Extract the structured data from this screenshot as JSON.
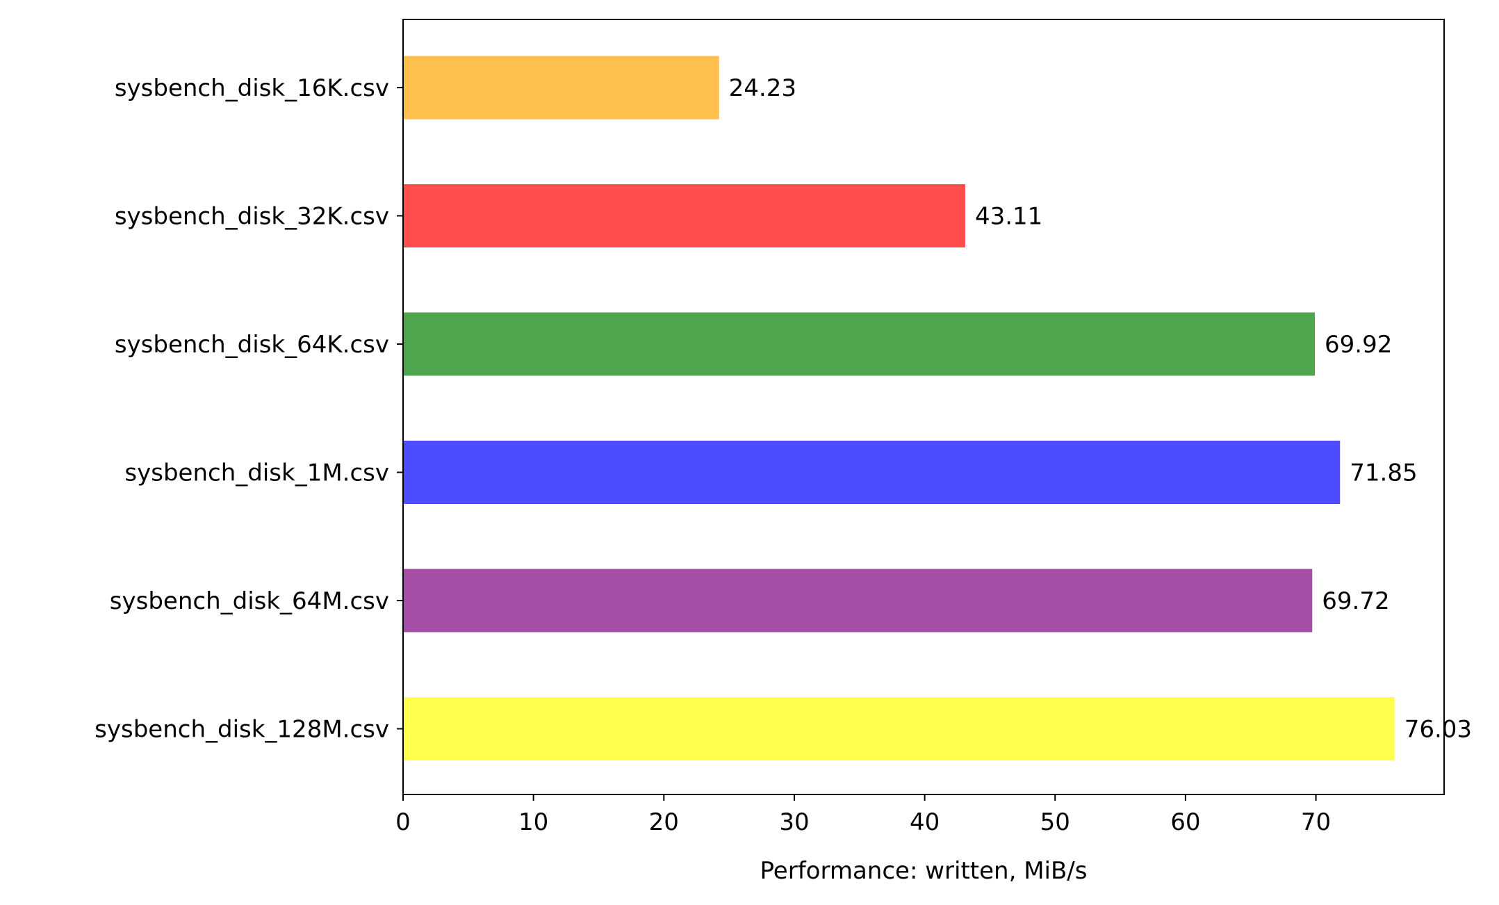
{
  "chart_data": {
    "type": "bar",
    "orientation": "horizontal",
    "categories": [
      "sysbench_disk_16K.csv",
      "sysbench_disk_32K.csv",
      "sysbench_disk_64K.csv",
      "sysbench_disk_1M.csv",
      "sysbench_disk_64M.csv",
      "sysbench_disk_128M.csv"
    ],
    "values": [
      24.23,
      43.11,
      69.92,
      71.85,
      69.72,
      76.03
    ],
    "value_labels": [
      "24.23",
      "43.11",
      "69.92",
      "71.85",
      "69.72",
      "76.03"
    ],
    "colors": [
      "#ffbf4d",
      "#ff4d4d",
      "#4da64d",
      "#4d4dff",
      "#a64da6",
      "#ffff4d"
    ],
    "title": "",
    "xlabel": "Performance: written, MiB/s",
    "ylabel": "",
    "xlim": [
      0,
      79.83
    ],
    "xticks": [
      0,
      10,
      20,
      30,
      40,
      50,
      60,
      70
    ],
    "grid": false,
    "legend": "none"
  }
}
